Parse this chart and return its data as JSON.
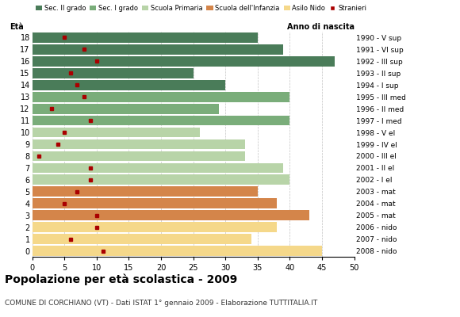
{
  "ages": [
    18,
    17,
    16,
    15,
    14,
    13,
    12,
    11,
    10,
    9,
    8,
    7,
    6,
    5,
    4,
    3,
    2,
    1,
    0
  ],
  "bar_values": [
    35,
    39,
    47,
    25,
    30,
    40,
    29,
    40,
    26,
    33,
    33,
    39,
    40,
    35,
    38,
    43,
    38,
    34,
    45
  ],
  "stranieri": [
    5,
    8,
    10,
    6,
    7,
    8,
    3,
    9,
    5,
    4,
    1,
    9,
    9,
    7,
    5,
    10,
    10,
    6,
    11
  ],
  "anno_nascita": [
    "1990 - V sup",
    "1991 - VI sup",
    "1992 - III sup",
    "1993 - II sup",
    "1994 - I sup",
    "1995 - III med",
    "1996 - II med",
    "1997 - I med",
    "1998 - V el",
    "1999 - IV el",
    "2000 - III el",
    "2001 - II el",
    "2002 - I el",
    "2003 - mat",
    "2004 - mat",
    "2005 - mat",
    "2006 - nido",
    "2007 - nido",
    "2008 - nido"
  ],
  "bar_colors": {
    "Sec. II grado": "#4a7c59",
    "Sec. I grado": "#7aad7a",
    "Scuola Primaria": "#b8d4a8",
    "Scuola dell'Infanzia": "#d4854a",
    "Asilo Nido": "#f5d88a",
    "Stranieri": "#aa0000"
  },
  "age_category": {
    "18": "Sec. II grado",
    "17": "Sec. II grado",
    "16": "Sec. II grado",
    "15": "Sec. II grado",
    "14": "Sec. II grado",
    "13": "Sec. I grado",
    "12": "Sec. I grado",
    "11": "Sec. I grado",
    "10": "Scuola Primaria",
    "9": "Scuola Primaria",
    "8": "Scuola Primaria",
    "7": "Scuola Primaria",
    "6": "Scuola Primaria",
    "5": "Scuola dell'Infanzia",
    "4": "Scuola dell'Infanzia",
    "3": "Scuola dell'Infanzia",
    "2": "Asilo Nido",
    "1": "Asilo Nido",
    "0": "Asilo Nido"
  },
  "title": "Popolazione per età scolastica - 2009",
  "subtitle": "COMUNE DI CORCHIANO (VT) - Dati ISTAT 1° gennaio 2009 - Elaborazione TUTTITALIA.IT",
  "xlabel_eta": "Età",
  "xlabel_anno": "Anno di nascita",
  "xlim": [
    0,
    50
  ],
  "xticks": [
    0,
    5,
    10,
    15,
    20,
    25,
    30,
    35,
    40,
    45,
    50
  ],
  "background_color": "#ffffff",
  "grid_color": "#aaaaaa"
}
